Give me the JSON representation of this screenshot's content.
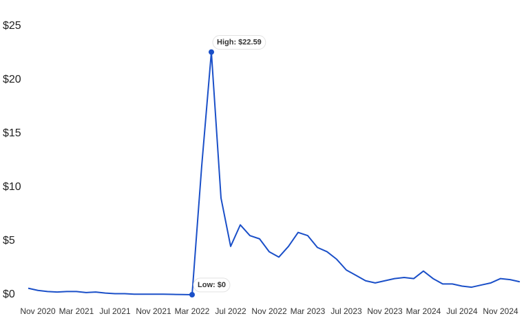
{
  "chart_data": {
    "type": "line",
    "x": [
      "Oct 2020",
      "Nov 2020",
      "Dec 2020",
      "Jan 2021",
      "Feb 2021",
      "Mar 2021",
      "Apr 2021",
      "May 2021",
      "Jun 2021",
      "Jul 2021",
      "Aug 2021",
      "Sep 2021",
      "Oct 2021",
      "Nov 2021",
      "Dec 2021",
      "Jan 2022",
      "Feb 2022",
      "Mar 2022",
      "Apr 2022",
      "May 2022",
      "Jun 2022",
      "Jul 2022",
      "Aug 2022",
      "Sep 2022",
      "Oct 2022",
      "Nov 2022",
      "Dec 2022",
      "Jan 2023",
      "Feb 2023",
      "Mar 2023",
      "Apr 2023",
      "May 2023",
      "Jun 2023",
      "Jul 2023",
      "Aug 2023",
      "Sep 2023",
      "Oct 2023",
      "Nov 2023",
      "Dec 2023",
      "Jan 2024",
      "Feb 2024",
      "Mar 2024",
      "Apr 2024",
      "May 2024",
      "Jun 2024",
      "Jul 2024",
      "Aug 2024",
      "Sep 2024",
      "Oct 2024",
      "Nov 2024",
      "Dec 2024",
      "Jan 2025"
    ],
    "values": [
      0.6,
      0.4,
      0.3,
      0.25,
      0.3,
      0.3,
      0.2,
      0.25,
      0.15,
      0.1,
      0.1,
      0.05,
      0.05,
      0.05,
      0.05,
      0.03,
      0.02,
      0,
      12,
      22.59,
      9,
      4.5,
      6.5,
      5.5,
      5.2,
      4.0,
      3.5,
      4.5,
      5.8,
      5.5,
      4.4,
      4.0,
      3.3,
      2.3,
      1.8,
      1.3,
      1.1,
      1.3,
      1.5,
      1.6,
      1.5,
      2.2,
      1.5,
      1.0,
      1.0,
      0.8,
      0.7,
      0.9,
      1.1,
      1.5,
      1.4,
      1.2
    ],
    "color": "#1a4fc8",
    "ylim": [
      0,
      25
    ],
    "yticks": [
      {
        "value": 0,
        "label": "$0"
      },
      {
        "value": 5,
        "label": "$5"
      },
      {
        "value": 10,
        "label": "$10"
      },
      {
        "value": 15,
        "label": "$15"
      },
      {
        "value": 20,
        "label": "$20"
      },
      {
        "value": 25,
        "label": "$25"
      }
    ],
    "xticks": [
      "Nov 2020",
      "Mar 2021",
      "Jul 2021",
      "Nov 2021",
      "Mar 2022",
      "Jul 2022",
      "Nov 2022",
      "Mar 2023",
      "Jul 2023",
      "Nov 2023",
      "Mar 2024",
      "Jul 2024",
      "Nov 2024"
    ],
    "annotations": [
      {
        "text": "High: $22.59",
        "x": "May 2022",
        "y": 22.59
      },
      {
        "text": "Low: $0",
        "x": "Mar 2022",
        "y": 0
      }
    ]
  }
}
